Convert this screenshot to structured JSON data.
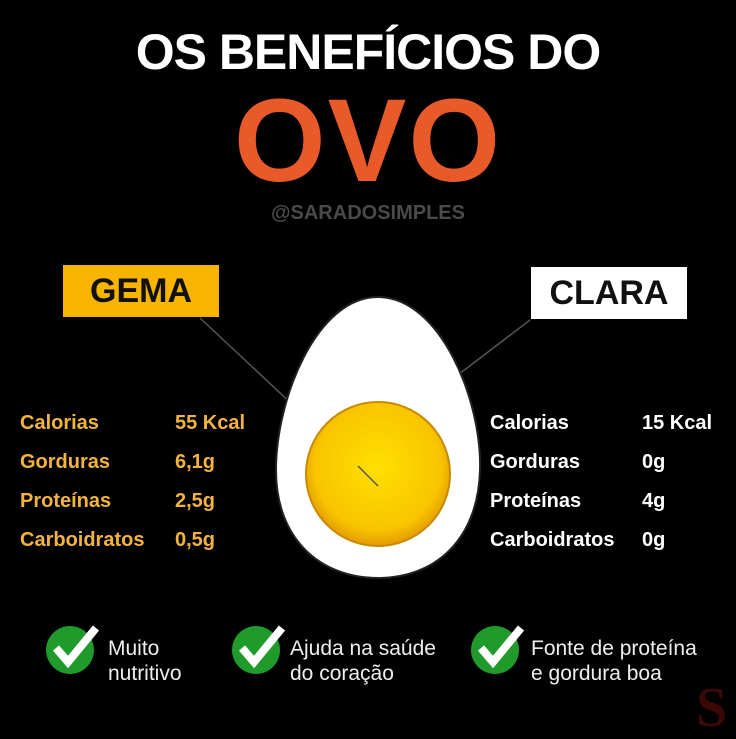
{
  "header": {
    "title": "OS BENEFÍCIOS DO",
    "highlight": "OVO",
    "handle": "@SARADOSIMPLES"
  },
  "colors": {
    "accent": "#e85a2a",
    "yolk_label": "#f7b500",
    "check": "#1f9a2b",
    "background": "#000000"
  },
  "gema": {
    "label": "GEMA",
    "rows": [
      {
        "name": "Calorias",
        "value": "55 Kcal"
      },
      {
        "name": "Gorduras",
        "value": "6,1g"
      },
      {
        "name": "Proteínas",
        "value": "2,5g"
      },
      {
        "name": "Carboidratos",
        "value": "0,5g"
      }
    ]
  },
  "clara": {
    "label": "CLARA",
    "rows": [
      {
        "name": "Calorias",
        "value": "15 Kcal"
      },
      {
        "name": "Gorduras",
        "value": "0g"
      },
      {
        "name": "Proteínas",
        "value": "4g"
      },
      {
        "name": "Carboidratos",
        "value": "0g"
      }
    ]
  },
  "benefits": [
    {
      "icon": "check-icon",
      "line1": "Muito",
      "line2": "nutritivo"
    },
    {
      "icon": "check-icon",
      "line1": "Ajuda na saúde",
      "line2": "do coração"
    },
    {
      "icon": "check-icon",
      "line1": "Fonte de proteína",
      "line2": "e gordura boa"
    }
  ],
  "watermark": "S"
}
